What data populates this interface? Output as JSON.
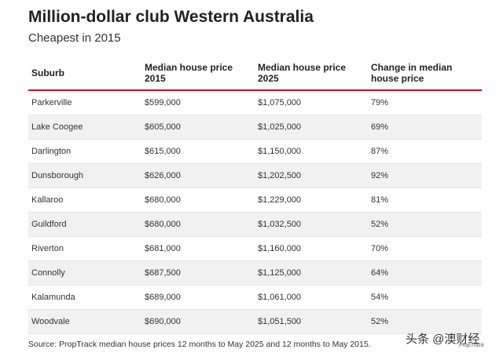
{
  "chart_data": {
    "type": "table",
    "title": "Million-dollar club Western Australia",
    "subtitle": "Cheapest in 2015",
    "columns": [
      "Suburb",
      "Median house price 2015",
      "Median house price 2025",
      "Change in median house price"
    ],
    "rows": [
      [
        "Parkerville",
        "$599,000",
        "$1,075,000",
        "79%"
      ],
      [
        "Lake Coogee",
        "$605,000",
        "$1,025,000",
        "69%"
      ],
      [
        "Darlington",
        "$615,000",
        "$1,150,000",
        "87%"
      ],
      [
        "Dunsborough",
        "$626,000",
        "$1,202,500",
        "92%"
      ],
      [
        "Kallaroo",
        "$680,000",
        "$1,229,000",
        "81%"
      ],
      [
        "Guildford",
        "$680,000",
        "$1,032,500",
        "52%"
      ],
      [
        "Riverton",
        "$681,000",
        "$1,160,000",
        "70%"
      ],
      [
        "Connolly",
        "$687,500",
        "$1,125,000",
        "64%"
      ],
      [
        "Kalamunda",
        "$689,000",
        "$1,061,000",
        "54%"
      ],
      [
        "Woodvale",
        "$690,000",
        "$1,051,500",
        "52%"
      ]
    ],
    "source": "Source: PropTrack median house prices 12 months to May 2025 and 12 months to May 2015."
  },
  "watermark": {
    "text": "头条 @澳财经",
    "brand": "PropTrack"
  },
  "colors": {
    "header_rule": "#c8102e",
    "stripe": "#f1f1f1"
  }
}
